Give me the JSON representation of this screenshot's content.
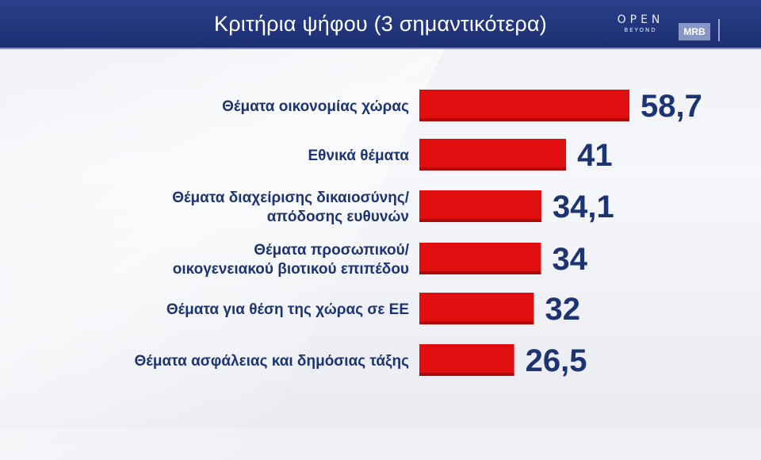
{
  "header": {
    "title": "Κριτήρια ψήφου (3 σημαντικότερα)",
    "logo_open": "OPEN",
    "logo_open_sub": "BEYOND",
    "logo_mrb": "MRB"
  },
  "colors": {
    "bar": "#e00e0e",
    "text": "#1d3473",
    "header": "#24387e"
  },
  "chart_data": {
    "type": "bar",
    "orientation": "horizontal",
    "title": "Κριτήρια ψήφου (3 σημαντικότερα)",
    "categories": [
      [
        "Θέματα οικονομίας χώρας"
      ],
      [
        "Εθνικά θέματα"
      ],
      [
        "Θέματα διαχείρισης δικαιοσύνης/",
        "απόδοσης ευθυνών"
      ],
      [
        "Θέματα προσωπικού/",
        "οικογενειακού βιοτικού επιπέδου"
      ],
      [
        "Θέματα για θέση της χώρας σε ΕΕ"
      ],
      [
        "Θέματα ασφάλειας και δημόσιας τάξης"
      ]
    ],
    "values": [
      58.7,
      41,
      34.1,
      34,
      32,
      26.5
    ],
    "value_labels": [
      "58,7",
      "41",
      "34,1",
      "34",
      "32",
      "26,5"
    ],
    "xlim": [
      0,
      58.7
    ],
    "grid": false,
    "legend": "none"
  }
}
